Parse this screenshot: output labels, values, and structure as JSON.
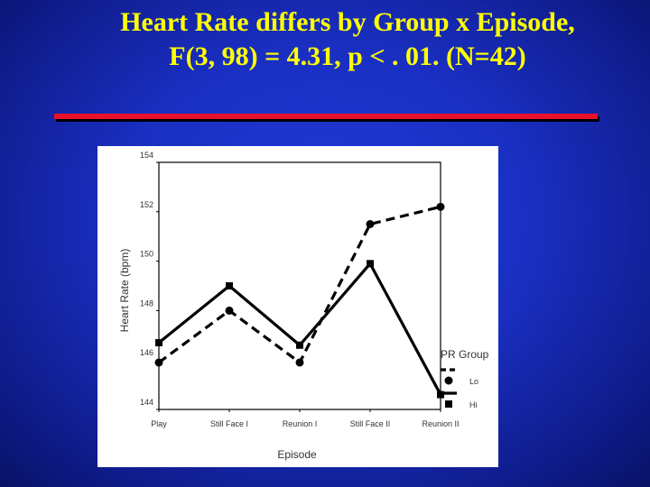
{
  "slide": {
    "title_line1": "Heart Rate differs by Group x Episode,",
    "title_line2": "F(3, 98) = 4.31, p < . 01. (N=42)",
    "title_color": "#ffff00",
    "rule_color": "#e8102a"
  },
  "chart_data": {
    "type": "line",
    "title": "",
    "xlabel": "Episode",
    "ylabel": "Heart Rate (bpm)",
    "categories": [
      "Play",
      "Still Face I",
      "Reunion I",
      "Still Face II",
      "Reunion II"
    ],
    "ylim": [
      144,
      154
    ],
    "yticks": [
      "144",
      "146",
      "148",
      "150",
      "152",
      "154"
    ],
    "grid": false,
    "legend": {
      "title": "PR Group",
      "placement": "bottom-right"
    },
    "series": [
      {
        "name": "Lo",
        "marker": "circle",
        "line": "dashed",
        "values": [
          145.9,
          148.0,
          145.9,
          151.5,
          152.2
        ]
      },
      {
        "name": "Hi",
        "marker": "square",
        "line": "solid",
        "values": [
          146.7,
          149.0,
          146.6,
          149.9,
          144.6
        ]
      }
    ]
  }
}
